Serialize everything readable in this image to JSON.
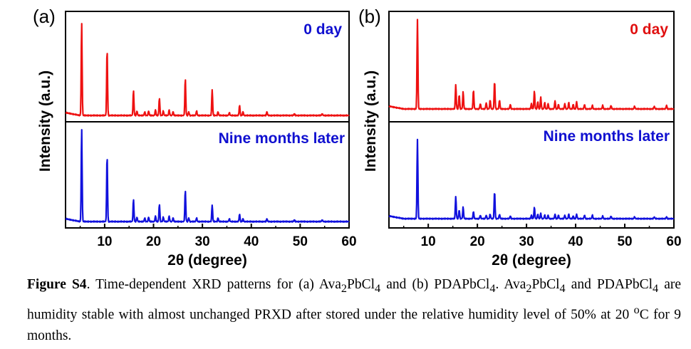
{
  "panels": [
    {
      "label": "(a)",
      "ylabel": "Intensity (a.u.)",
      "xlabel": "2θ (degree)",
      "top_title": "0 day",
      "bottom_title": "Nine months later",
      "top_title_color": "#1010d0",
      "bottom_title_color": "#1010d0"
    },
    {
      "label": "(b)",
      "ylabel": "Intensity (a.u.)",
      "xlabel": "2θ (degree)",
      "top_title": "0 day",
      "bottom_title": "Nine months later",
      "top_title_color": "#e01010",
      "bottom_title_color": "#1010d0"
    }
  ],
  "chart_data": [
    {
      "type": "line",
      "panel": "(a)",
      "xlim": [
        2,
        60
      ],
      "xticks": [
        10,
        20,
        30,
        40,
        50,
        60
      ],
      "xlabel": "2θ (degree)",
      "ylabel": "Intensity (a.u.)",
      "series": [
        {
          "name": "0 day",
          "color": "#ee1111",
          "baseline": 0.03,
          "peaks": [
            [
              5.3,
              1.0
            ],
            [
              10.5,
              0.72
            ],
            [
              15.9,
              0.27
            ],
            [
              16.6,
              0.05
            ],
            [
              18.2,
              0.04
            ],
            [
              19.0,
              0.05
            ],
            [
              20.4,
              0.06
            ],
            [
              21.2,
              0.19
            ],
            [
              22.0,
              0.05
            ],
            [
              23.2,
              0.06
            ],
            [
              24.0,
              0.04
            ],
            [
              26.5,
              0.4
            ],
            [
              27.2,
              0.04
            ],
            [
              28.8,
              0.05
            ],
            [
              32.0,
              0.28
            ],
            [
              33.2,
              0.04
            ],
            [
              35.5,
              0.03
            ],
            [
              37.6,
              0.11
            ],
            [
              38.3,
              0.04
            ],
            [
              43.2,
              0.04
            ],
            [
              48.8,
              0.02
            ],
            [
              54.5,
              0.02
            ]
          ]
        },
        {
          "name": "Nine months later",
          "color": "#1111dd",
          "baseline": 0.03,
          "peaks": [
            [
              5.3,
              1.0
            ],
            [
              10.5,
              0.72
            ],
            [
              15.9,
              0.24
            ],
            [
              16.6,
              0.05
            ],
            [
              18.2,
              0.04
            ],
            [
              19.0,
              0.05
            ],
            [
              20.4,
              0.06
            ],
            [
              21.2,
              0.19
            ],
            [
              22.0,
              0.05
            ],
            [
              23.2,
              0.06
            ],
            [
              24.0,
              0.04
            ],
            [
              26.5,
              0.34
            ],
            [
              27.2,
              0.04
            ],
            [
              28.8,
              0.04
            ],
            [
              32.0,
              0.18
            ],
            [
              33.2,
              0.04
            ],
            [
              35.5,
              0.03
            ],
            [
              37.6,
              0.08
            ],
            [
              38.3,
              0.03
            ],
            [
              43.2,
              0.03
            ],
            [
              48.8,
              0.02
            ],
            [
              54.5,
              0.02
            ]
          ]
        }
      ]
    },
    {
      "type": "line",
      "panel": "(b)",
      "xlim": [
        2,
        60
      ],
      "xticks": [
        10,
        20,
        30,
        40,
        50,
        60
      ],
      "xlabel": "2θ (degree)",
      "ylabel": "Intensity (a.u.)",
      "series": [
        {
          "name": "0 day",
          "color": "#ee1111",
          "baseline": 0.04,
          "peaks": [
            [
              7.8,
              1.0
            ],
            [
              15.6,
              0.27
            ],
            [
              16.3,
              0.16
            ],
            [
              17.1,
              0.19
            ],
            [
              19.2,
              0.21
            ],
            [
              20.6,
              0.06
            ],
            [
              21.8,
              0.07
            ],
            [
              22.6,
              0.1
            ],
            [
              23.5,
              0.31
            ],
            [
              24.5,
              0.1
            ],
            [
              26.7,
              0.05
            ],
            [
              31.0,
              0.06
            ],
            [
              31.6,
              0.2
            ],
            [
              32.3,
              0.08
            ],
            [
              32.9,
              0.13
            ],
            [
              33.7,
              0.07
            ],
            [
              34.4,
              0.06
            ],
            [
              35.8,
              0.09
            ],
            [
              36.5,
              0.05
            ],
            [
              37.8,
              0.06
            ],
            [
              38.6,
              0.07
            ],
            [
              39.5,
              0.05
            ],
            [
              40.2,
              0.08
            ],
            [
              41.8,
              0.05
            ],
            [
              43.4,
              0.04
            ],
            [
              45.5,
              0.04
            ],
            [
              47.2,
              0.04
            ],
            [
              52.0,
              0.03
            ],
            [
              56.0,
              0.03
            ],
            [
              58.5,
              0.04
            ]
          ]
        },
        {
          "name": "Nine months later",
          "color": "#1111dd",
          "baseline": 0.04,
          "peaks": [
            [
              7.8,
              0.9
            ],
            [
              15.6,
              0.25
            ],
            [
              16.3,
              0.1
            ],
            [
              17.1,
              0.13
            ],
            [
              19.2,
              0.08
            ],
            [
              20.6,
              0.04
            ],
            [
              21.8,
              0.04
            ],
            [
              22.6,
              0.05
            ],
            [
              23.5,
              0.31
            ],
            [
              24.5,
              0.05
            ],
            [
              26.7,
              0.03
            ],
            [
              31.0,
              0.04
            ],
            [
              31.6,
              0.13
            ],
            [
              32.3,
              0.05
            ],
            [
              32.9,
              0.06
            ],
            [
              33.7,
              0.04
            ],
            [
              34.4,
              0.04
            ],
            [
              35.8,
              0.05
            ],
            [
              36.5,
              0.04
            ],
            [
              37.8,
              0.04
            ],
            [
              38.6,
              0.05
            ],
            [
              39.5,
              0.03
            ],
            [
              40.2,
              0.05
            ],
            [
              41.8,
              0.04
            ],
            [
              43.4,
              0.04
            ],
            [
              45.5,
              0.03
            ],
            [
              47.2,
              0.03
            ],
            [
              52.0,
              0.02
            ],
            [
              56.0,
              0.02
            ],
            [
              58.5,
              0.02
            ]
          ]
        }
      ]
    }
  ],
  "caption": {
    "label": "Figure S4",
    "text_1": ". Time-dependent XRD patterns for (a) Ava",
    "sub_2a": "2",
    "text_2": "PbCl",
    "sub_4a": "4",
    "text_3": " and (b) PDAPbCl",
    "sub_4b": "4",
    "text_4": ". Ava",
    "sub_2b": "2",
    "text_5": "PbCl",
    "sub_4c": "4",
    "text_6": " and PDAPbCl",
    "sub_4d": "4",
    "text_7": " are humidity stable with almost unchanged PRXD after stored under the relative humidity level of 50% at 20 ",
    "sup_o": "o",
    "text_8": "C for 9 months."
  }
}
